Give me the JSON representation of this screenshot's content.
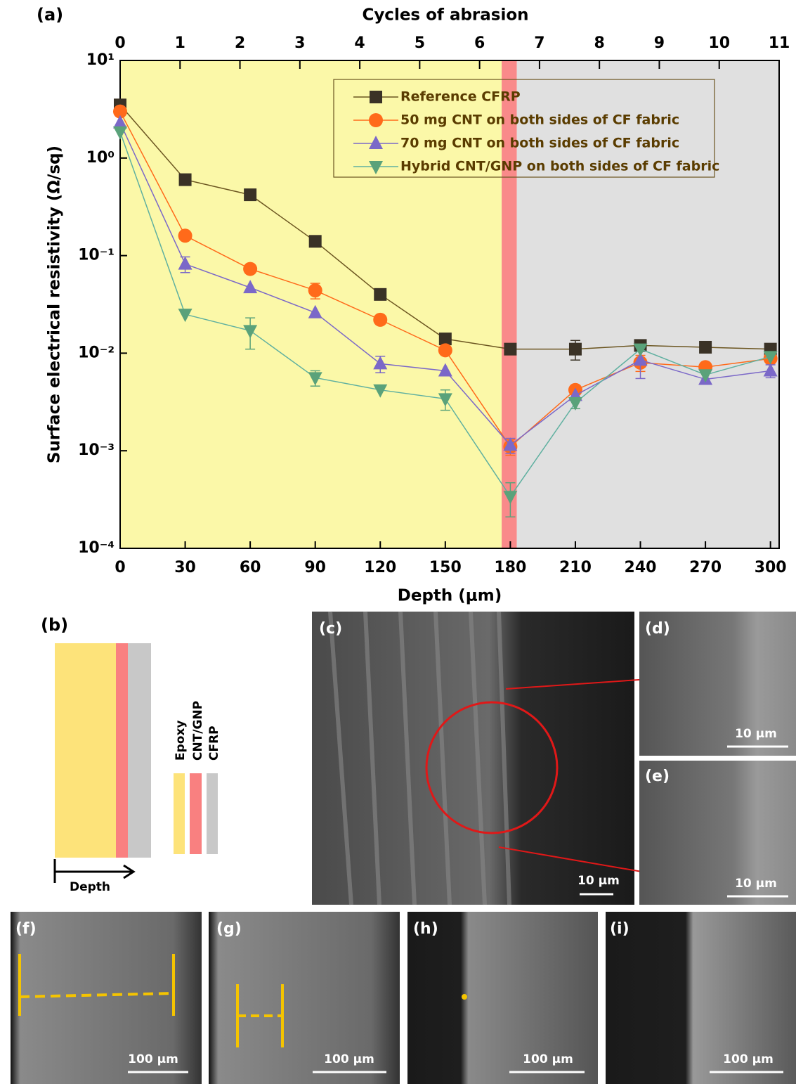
{
  "chart_data": {
    "type": "line",
    "panel_label": "(a)",
    "title": "Cycles of abrasion",
    "xlabel": "Depth (μm)",
    "ylabel": "Surface electrical resistivity (Ω/sq)",
    "x": [
      0,
      30,
      60,
      90,
      120,
      150,
      180,
      210,
      240,
      270,
      300
    ],
    "xlim": [
      0,
      304
    ],
    "xticks": [
      0,
      30,
      60,
      90,
      120,
      150,
      180,
      210,
      240,
      270,
      300
    ],
    "x2lim": [
      0,
      11
    ],
    "x2ticks": [
      0,
      1,
      2,
      3,
      4,
      5,
      6,
      7,
      8,
      9,
      10,
      11
    ],
    "ylim": [
      0.0001,
      10
    ],
    "log_y": true,
    "yticks": [
      {
        "value": 0.0001,
        "label": "10⁻⁴"
      },
      {
        "value": 0.001,
        "label": "10⁻³"
      },
      {
        "value": 0.01,
        "label": "10⁻²"
      },
      {
        "value": 0.1,
        "label": "10⁻¹"
      },
      {
        "value": 1,
        "label": "10⁰"
      },
      {
        "value": 10,
        "label": "10¹"
      }
    ],
    "bands": [
      {
        "xlim": [
          0,
          176
        ],
        "color": "#fbf8a8"
      },
      {
        "xlim": [
          176,
          183
        ],
        "color": "#f98a8a"
      },
      {
        "xlim": [
          183,
          304
        ],
        "color": "#e0e0e0"
      }
    ],
    "legend": "upper center",
    "series": [
      {
        "name": "Reference CFRP",
        "color": "#3a3226",
        "line_color": "#6b5520",
        "marker": "square",
        "values": [
          3.5,
          0.6,
          0.42,
          0.14,
          0.04,
          0.014,
          0.011,
          0.011,
          0.012,
          0.0115,
          0.011
        ],
        "errors": [
          0.5,
          null,
          null,
          null,
          null,
          null,
          null,
          0.0025,
          null,
          null,
          null
        ]
      },
      {
        "name": "50 mg CNT on both sides of CF fabric",
        "color": "#ff6a1a",
        "line_color": "#ff6a1a",
        "marker": "circle",
        "values": [
          3.0,
          0.16,
          0.073,
          0.044,
          0.022,
          0.0107,
          0.0011,
          0.0042,
          0.008,
          0.0072,
          0.0088
        ],
        "errors": [
          null,
          null,
          null,
          0.008,
          null,
          null,
          0.0002,
          null,
          0.0015,
          null,
          null
        ]
      },
      {
        "name": "70 mg CNT on both sides of CF fabric",
        "color": "#7b68c8",
        "line_color": "#7b68c8",
        "marker": "triangle-up",
        "values": [
          2.3,
          0.082,
          0.047,
          0.026,
          0.0078,
          0.0066,
          0.00114,
          0.0037,
          0.0085,
          0.0054,
          0.0066
        ],
        "errors": [
          null,
          0.015,
          null,
          null,
          0.0015,
          null,
          0.0002,
          null,
          0.003,
          null,
          0.001
        ]
      },
      {
        "name": "Hybrid CNT/GNP on both sides of CF fabric",
        "color": "#5aa27a",
        "line_color": "#5fb0a0",
        "marker": "triangle-down",
        "values": [
          1.85,
          0.025,
          0.017,
          0.0056,
          0.0042,
          0.0034,
          0.00034,
          0.0031,
          0.011,
          0.006,
          0.0092
        ],
        "errors": [
          null,
          null,
          0.006,
          0.001,
          null,
          0.0008,
          0.00013,
          0.0004,
          null,
          null,
          null
        ]
      }
    ]
  },
  "panels": {
    "b": {
      "label": "(b)",
      "layers": [
        "Epoxy",
        "CNT/GNP",
        "CFRP"
      ],
      "axis": "Depth"
    },
    "c": {
      "label": "(c)",
      "scale_bar": "10 μm"
    },
    "d": {
      "label": "(d)",
      "scale_bar": "10 μm"
    },
    "e": {
      "label": "(e)",
      "scale_bar": "10 μm"
    },
    "f": {
      "label": "(f)",
      "scale_bar": "100 μm"
    },
    "g": {
      "label": "(g)",
      "scale_bar": "100 μm"
    },
    "h": {
      "label": "(h)",
      "scale_bar": "100 μm"
    },
    "i": {
      "label": "(i)",
      "scale_bar": "100 μm"
    }
  }
}
